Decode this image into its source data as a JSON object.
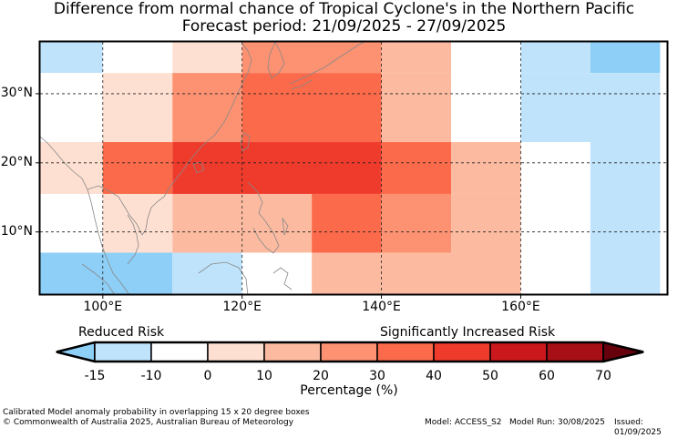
{
  "title": {
    "line1": "Difference from normal chance of Tropical Cyclone's in the Northern Pacific",
    "line2": "Forecast period: 21/09/2025 - 27/09/2025"
  },
  "axes": {
    "lat_labels": [
      "30°N",
      "20°N",
      "10°N"
    ],
    "lon_labels": [
      "100°E",
      "120°E",
      "140°E",
      "160°E"
    ]
  },
  "legend": {
    "reduced_label": "Reduced Risk",
    "increased_label": "Significantly Increased Risk",
    "ticks": [
      "-15",
      "-10",
      "0",
      "10",
      "20",
      "30",
      "40",
      "50",
      "60",
      "70"
    ],
    "xlabel": "Percentage (%)",
    "colors": [
      "#8ecff7",
      "#bfe3fb",
      "#ffffff",
      "#fee0d2",
      "#fcbba1",
      "#fc9272",
      "#fb6a4a",
      "#ef3b2c",
      "#cb181d",
      "#a50f15",
      "#67000d"
    ]
  },
  "chart_data": {
    "type": "heatmap",
    "cells": [
      {
        "lon": [
          90,
          100
        ],
        "lat": [
          33,
          38
        ],
        "color": "#bfe3fb"
      },
      {
        "lon": [
          100,
          110
        ],
        "lat": [
          33,
          38
        ],
        "color": "#ffffff"
      },
      {
        "lon": [
          110,
          120
        ],
        "lat": [
          33,
          38
        ],
        "color": "#fee0d2"
      },
      {
        "lon": [
          120,
          140
        ],
        "lat": [
          33,
          38
        ],
        "color": "#fc9272"
      },
      {
        "lon": [
          140,
          150
        ],
        "lat": [
          33,
          38
        ],
        "color": "#fcbba1"
      },
      {
        "lon": [
          150,
          160
        ],
        "lat": [
          33,
          38
        ],
        "color": "#ffffff"
      },
      {
        "lon": [
          160,
          170
        ],
        "lat": [
          33,
          38
        ],
        "color": "#bfe3fb"
      },
      {
        "lon": [
          170,
          180
        ],
        "lat": [
          33,
          38
        ],
        "color": "#8ecff7"
      },
      {
        "lon": [
          90,
          100
        ],
        "lat": [
          23,
          33
        ],
        "color": "#ffffff"
      },
      {
        "lon": [
          100,
          110
        ],
        "lat": [
          23,
          33
        ],
        "color": "#fee0d2"
      },
      {
        "lon": [
          110,
          120
        ],
        "lat": [
          23,
          33
        ],
        "color": "#fc9272"
      },
      {
        "lon": [
          120,
          140
        ],
        "lat": [
          23,
          33
        ],
        "color": "#fb6a4a"
      },
      {
        "lon": [
          140,
          150
        ],
        "lat": [
          23,
          33
        ],
        "color": "#fcbba1"
      },
      {
        "lon": [
          150,
          160
        ],
        "lat": [
          23,
          33
        ],
        "color": "#ffffff"
      },
      {
        "lon": [
          160,
          180
        ],
        "lat": [
          23,
          33
        ],
        "color": "#bfe3fb"
      },
      {
        "lon": [
          90,
          100
        ],
        "lat": [
          15.5,
          23
        ],
        "color": "#fee0d2"
      },
      {
        "lon": [
          100,
          110
        ],
        "lat": [
          15.5,
          23
        ],
        "color": "#fb6a4a"
      },
      {
        "lon": [
          110,
          140
        ],
        "lat": [
          15.5,
          23
        ],
        "color": "#ef3b2c"
      },
      {
        "lon": [
          140,
          150
        ],
        "lat": [
          15.5,
          23
        ],
        "color": "#fb6a4a"
      },
      {
        "lon": [
          150,
          160
        ],
        "lat": [
          15.5,
          23
        ],
        "color": "#fcbba1"
      },
      {
        "lon": [
          160,
          170
        ],
        "lat": [
          15.5,
          23
        ],
        "color": "#ffffff"
      },
      {
        "lon": [
          170,
          180
        ],
        "lat": [
          15.5,
          23
        ],
        "color": "#bfe3fb"
      },
      {
        "lon": [
          90,
          100
        ],
        "lat": [
          7,
          15.5
        ],
        "color": "#ffffff"
      },
      {
        "lon": [
          100,
          110
        ],
        "lat": [
          7,
          15.5
        ],
        "color": "#fee0d2"
      },
      {
        "lon": [
          110,
          130
        ],
        "lat": [
          7,
          15.5
        ],
        "color": "#fcbba1"
      },
      {
        "lon": [
          130,
          140
        ],
        "lat": [
          7,
          15.5
        ],
        "color": "#fb6a4a"
      },
      {
        "lon": [
          140,
          150
        ],
        "lat": [
          7,
          15.5
        ],
        "color": "#fc9272"
      },
      {
        "lon": [
          150,
          160
        ],
        "lat": [
          7,
          15.5
        ],
        "color": "#fcbba1"
      },
      {
        "lon": [
          160,
          170
        ],
        "lat": [
          7,
          15.5
        ],
        "color": "#ffffff"
      },
      {
        "lon": [
          170,
          180
        ],
        "lat": [
          7,
          15.5
        ],
        "color": "#bfe3fb"
      },
      {
        "lon": [
          90,
          110
        ],
        "lat": [
          1,
          7
        ],
        "color": "#8ecff7"
      },
      {
        "lon": [
          110,
          120
        ],
        "lat": [
          1,
          7
        ],
        "color": "#bfe3fb"
      },
      {
        "lon": [
          120,
          130
        ],
        "lat": [
          1,
          7
        ],
        "color": "#ffffff"
      },
      {
        "lon": [
          130,
          160
        ],
        "lat": [
          1,
          7
        ],
        "color": "#fcbba1"
      },
      {
        "lon": [
          160,
          170
        ],
        "lat": [
          1,
          7
        ],
        "color": "#ffffff"
      },
      {
        "lon": [
          170,
          180
        ],
        "lat": [
          1,
          7
        ],
        "color": "#bfe3fb"
      }
    ],
    "lon_range": [
      91,
      181
    ],
    "lat_range": [
      1,
      37.5
    ],
    "lat_ticks": [
      30,
      20,
      10
    ],
    "lon_ticks": [
      100,
      120,
      140,
      160
    ],
    "grid": true
  },
  "footer": {
    "note": "Calibrated Model anomaly probability in overlapping 15 x 20 degree boxes",
    "copyright": "© Commonwealth of Australia 2025, Australian Bureau of Meteorology",
    "model": "Model: ACCESS_S2",
    "model_run": "Model Run: 30/08/2025",
    "issued": "Issued: 01/09/2025"
  }
}
